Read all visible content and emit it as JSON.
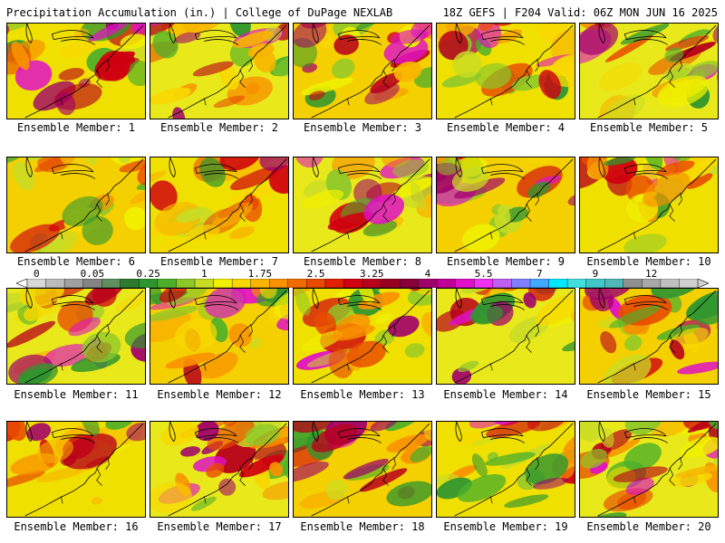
{
  "header": {
    "left": "Precipitation Accumulation (in.) | College of DuPage NEXLAB",
    "right": "18Z GEFS | F204 Valid: 06Z MON JUN 16 2025"
  },
  "members": [
    {
      "label": "Ensemble Member: 1"
    },
    {
      "label": "Ensemble Member: 2"
    },
    {
      "label": "Ensemble Member: 3"
    },
    {
      "label": "Ensemble Member: 4"
    },
    {
      "label": "Ensemble Member: 5"
    },
    {
      "label": "Ensemble Member: 6"
    },
    {
      "label": "Ensemble Member: 7"
    },
    {
      "label": "Ensemble Member: 8"
    },
    {
      "label": "Ensemble Member: 9"
    },
    {
      "label": "Ensemble Member: 10"
    },
    {
      "label": "Ensemble Member: 11"
    },
    {
      "label": "Ensemble Member: 12"
    },
    {
      "label": "Ensemble Member: 13"
    },
    {
      "label": "Ensemble Member: 14"
    },
    {
      "label": "Ensemble Member: 15"
    },
    {
      "label": "Ensemble Member: 16"
    },
    {
      "label": "Ensemble Member: 17"
    },
    {
      "label": "Ensemble Member: 18"
    },
    {
      "label": "Ensemble Member: 19"
    },
    {
      "label": "Ensemble Member: 20"
    }
  ],
  "colorbar": {
    "tick_labels": [
      "0",
      "0.05",
      "0.25",
      "1",
      "1.75",
      "2.5",
      "3.25",
      "4",
      "5.5",
      "7",
      "9",
      "12"
    ],
    "colors": [
      "#d8d8d8",
      "#bcbcbc",
      "#a0a0a0",
      "#848484",
      "#5f8f5f",
      "#2e7a2e",
      "#2f962f",
      "#4caf2a",
      "#8cc82a",
      "#c8dc26",
      "#f0f000",
      "#f8d800",
      "#f8b400",
      "#f89000",
      "#f06c00",
      "#e84a00",
      "#e02000",
      "#d00010",
      "#b8001c",
      "#980020",
      "#880038",
      "#a0006c",
      "#c00096",
      "#e010c8",
      "#f030f0",
      "#c060f0",
      "#8080ff",
      "#40a8ff",
      "#00e8ff",
      "#40e0e0",
      "#40c8c8",
      "#50b8b8",
      "#909090",
      "#a8a8a8",
      "#c0c0c0",
      "#d0d0d0"
    ]
  }
}
